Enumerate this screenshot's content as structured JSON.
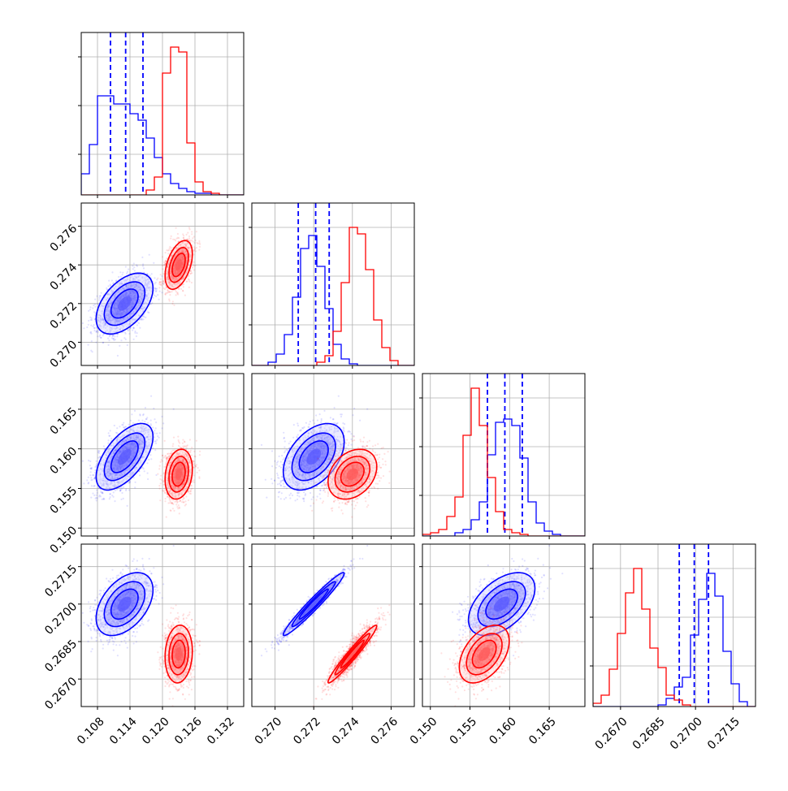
{
  "chart_data": {
    "type": "corner",
    "params": [
      {
        "ticks": [
          "0.108",
          "0.114",
          "0.120",
          "0.126",
          "0.132"
        ],
        "range": [
          0.105,
          0.135
        ]
      },
      {
        "ticks": [
          "0.270",
          "0.272",
          "0.274",
          "0.276"
        ],
        "range": [
          0.2688,
          0.2772
        ]
      },
      {
        "ticks": [
          "0.150",
          "0.155",
          "0.160",
          "0.165"
        ],
        "range": [
          0.149,
          0.1695
        ]
      },
      {
        "ticks": [
          "0.2670",
          "0.2685",
          "0.2700",
          "0.2715"
        ],
        "range": [
          0.2659,
          0.2724
        ]
      }
    ],
    "series": [
      {
        "color": "#0000ff",
        "mean": [
          0.113,
          0.272,
          0.159,
          0.27
        ],
        "std": [
          0.0025,
          0.00075,
          0.002,
          0.0006
        ],
        "corr": [
          [
            1,
            0.5,
            0.6,
            0.45
          ],
          [
            0.5,
            1,
            0.45,
            0.97
          ],
          [
            0.6,
            0.45,
            1,
            0.5
          ],
          [
            0.45,
            0.97,
            0.5,
            1
          ]
        ],
        "quantiles": [
          [
            0.1104,
            0.1132,
            0.1164
          ],
          [
            0.2712,
            0.2721,
            0.2728
          ],
          [
            0.1572,
            0.1594,
            0.1616
          ],
          [
            0.26935,
            0.26995,
            0.27052
          ]
        ],
        "hist": [
          {
            "edges": [
              0.105,
              0.135
            ],
            "counts": [
              0.13,
              0.31,
              0.61,
              0.61,
              0.56,
              0.56,
              0.5,
              0.46,
              0.35,
              0.23,
              0.13,
              0.07,
              0.04,
              0.02,
              0.01,
              0.01,
              0.0,
              0.0,
              0.0,
              0.0
            ]
          },
          {
            "edges": [
              0.2688,
              0.2772
            ],
            "counts": [
              0.0,
              0.0,
              0.02,
              0.07,
              0.19,
              0.42,
              0.72,
              0.8,
              0.61,
              0.35,
              0.13,
              0.04,
              0.01,
              0.0,
              0.0,
              0.0,
              0.0,
              0.0,
              0.0,
              0.0
            ]
          },
          {
            "edges": [
              0.149,
              0.1695
            ],
            "counts": [
              0.0,
              0.0,
              0.0,
              0.0,
              0.02,
              0.04,
              0.1,
              0.21,
              0.5,
              0.7,
              0.72,
              0.68,
              0.48,
              0.21,
              0.08,
              0.03,
              0.01,
              0.0,
              0.0,
              0.0
            ]
          },
          {
            "edges": [
              0.2659,
              0.2724
            ],
            "counts": [
              0.0,
              0.0,
              0.0,
              0.0,
              0.0,
              0.0,
              0.0,
              0.0,
              0.01,
              0.05,
              0.12,
              0.18,
              0.44,
              0.66,
              0.82,
              0.68,
              0.34,
              0.14,
              0.03,
              0.0
            ]
          }
        ]
      },
      {
        "color": "#ff0000",
        "mean": [
          0.123,
          0.274,
          0.1568,
          0.268
        ],
        "std": [
          0.0012,
          0.0006,
          0.0015,
          0.00055
        ],
        "corr": [
          [
            1,
            0.45,
            0.2,
            0.1
          ],
          [
            0.45,
            1,
            0.3,
            0.97
          ],
          [
            0.2,
            0.3,
            1,
            0.45
          ],
          [
            0.1,
            0.97,
            0.45,
            1
          ]
        ],
        "quantiles": [],
        "hist": [
          {
            "edges": [
              0.105,
              0.135
            ],
            "counts": [
              0.0,
              0.0,
              0.0,
              0.0,
              0.0,
              0.0,
              0.0,
              0.0,
              0.03,
              0.11,
              0.75,
              0.91,
              0.88,
              0.32,
              0.08,
              0.02,
              0.01,
              0.0,
              0.0,
              0.0
            ]
          },
          {
            "edges": [
              0.2688,
              0.2772
            ],
            "counts": [
              0.0,
              0.0,
              0.0,
              0.0,
              0.0,
              0.0,
              0.0,
              0.0,
              0.02,
              0.06,
              0.21,
              0.51,
              0.85,
              0.81,
              0.59,
              0.28,
              0.11,
              0.03,
              0.0,
              0.0
            ]
          },
          {
            "edges": [
              0.149,
              0.1695
            ],
            "counts": [
              0.01,
              0.02,
              0.04,
              0.12,
              0.24,
              0.62,
              0.91,
              0.68,
              0.36,
              0.15,
              0.04,
              0.02,
              0.01,
              0.0,
              0.0,
              0.0,
              0.0,
              0.0,
              0.0,
              0.0
            ]
          },
          {
            "edges": [
              0.2659,
              0.2724
            ],
            "counts": [
              0.02,
              0.07,
              0.23,
              0.45,
              0.7,
              0.85,
              0.6,
              0.36,
              0.24,
              0.07,
              0.04,
              0.01,
              0.0,
              0.0,
              0.0,
              0.0,
              0.0,
              0.0,
              0.0,
              0.0
            ]
          }
        ]
      }
    ],
    "grid": true
  }
}
